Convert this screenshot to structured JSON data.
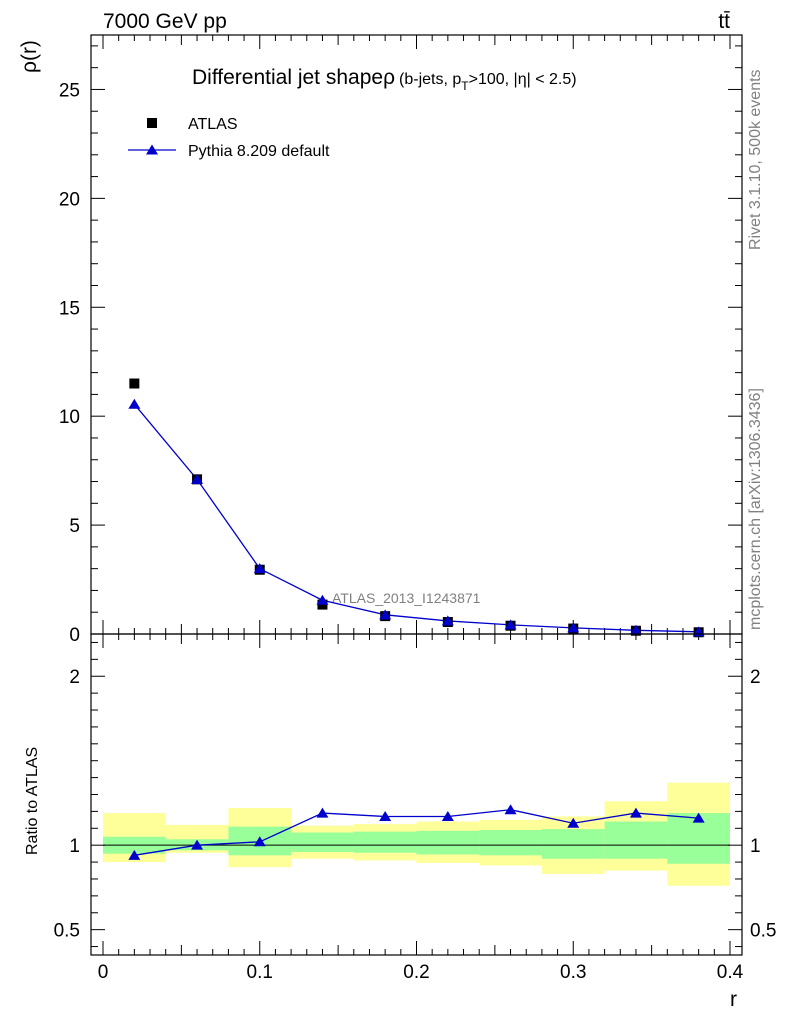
{
  "header": {
    "left": "7000 GeV pp",
    "right": "tt̄"
  },
  "side_text": {
    "rivet": "Rivet 3.1.10,  500k events",
    "mcplots": "mcplots.cern.ch [arXiv:1306.3436]"
  },
  "chart_data": {
    "type": "scatter",
    "title_main": "Differential jet shape",
    "title_rho": "ρ",
    "title_cut_1": "(b-jets, p",
    "title_cut_sub": "T",
    "title_cut_2": ">100, |η| < 2.5)",
    "analysis_label": "ATLAS_2013_I1243871",
    "xlabel": "r",
    "ylabel_top": "ρ(r)",
    "ylabel_ratio": "Ratio to ATLAS",
    "xlim": [
      0,
      0.4
    ],
    "ylim_top": [
      0,
      27.5
    ],
    "ylim_ratio": [
      0.35,
      2.25
    ],
    "x_ticks": [
      "0",
      "0.1",
      "0.2",
      "0.3",
      "0.4"
    ],
    "y_ticks_top": [
      "0",
      "5",
      "10",
      "15",
      "20",
      "25"
    ],
    "y_ticks_ratio": [
      "0.5",
      "1",
      "2"
    ],
    "legend": [
      {
        "name": "ATLAS",
        "marker": "square",
        "color": "#000000"
      },
      {
        "name": "Pythia 8.209 default",
        "marker": "triangle",
        "color": "#0000cc"
      }
    ],
    "x": [
      0.02,
      0.06,
      0.1,
      0.14,
      0.18,
      0.22,
      0.26,
      0.3,
      0.34,
      0.38
    ],
    "bin_edges": [
      0.0,
      0.04,
      0.08,
      0.12,
      0.16,
      0.2,
      0.24,
      0.28,
      0.32,
      0.36,
      0.4
    ],
    "series": [
      {
        "name": "ATLAS",
        "values": [
          11.5,
          7.1,
          2.95,
          1.35,
          0.82,
          0.55,
          0.38,
          0.25,
          0.15,
          0.08
        ]
      },
      {
        "name": "Pythia 8.209 default",
        "values": [
          10.55,
          7.1,
          3.0,
          1.55,
          0.88,
          0.6,
          0.42,
          0.28,
          0.17,
          0.1
        ]
      }
    ],
    "ratio": {
      "mc_values": [
        0.94,
        1.0,
        1.02,
        1.19,
        1.17,
        1.17,
        1.21,
        1.13,
        1.19,
        1.16
      ],
      "band_inner_low": [
        0.95,
        0.97,
        0.94,
        0.96,
        0.955,
        0.945,
        0.94,
        0.92,
        0.92,
        0.89
      ],
      "band_inner_high": [
        1.05,
        1.035,
        1.11,
        1.075,
        1.08,
        1.085,
        1.09,
        1.095,
        1.14,
        1.19
      ],
      "band_outer_low": [
        0.9,
        0.955,
        0.87,
        0.92,
        0.91,
        0.895,
        0.88,
        0.83,
        0.85,
        0.76
      ],
      "band_outer_high": [
        1.19,
        1.12,
        1.22,
        1.115,
        1.125,
        1.14,
        1.15,
        1.17,
        1.26,
        1.37
      ],
      "inner_color": "#99ff99",
      "outer_color": "#ffff99"
    }
  }
}
